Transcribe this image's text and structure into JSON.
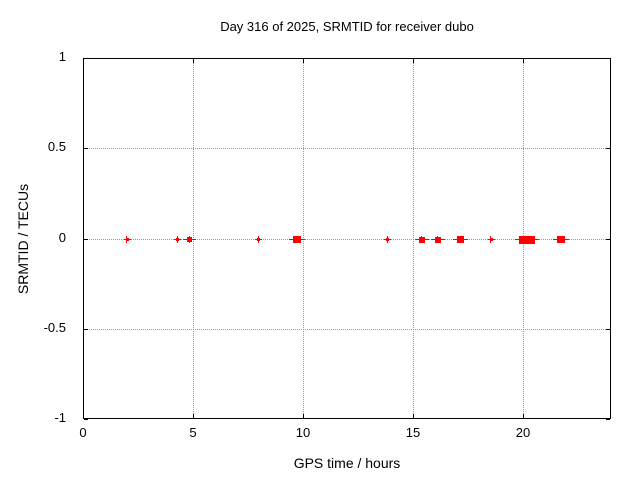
{
  "chart_data": {
    "type": "scatter",
    "title": "Day 316 of 2025, SRMTID for receiver dubo",
    "xlabel": "GPS time / hours",
    "ylabel": "SRMTID / TECUs",
    "xlim": [
      0,
      24
    ],
    "ylim": [
      -1,
      1
    ],
    "xticks": {
      "values": [
        0,
        5,
        10,
        15,
        20
      ],
      "labels": [
        "0",
        "5",
        "10",
        "15",
        "20"
      ]
    },
    "yticks": {
      "values": [
        1,
        0.5,
        0,
        -0.5,
        -1
      ],
      "labels": [
        "1",
        "0.5",
        "0",
        "-0.5",
        "-1"
      ]
    },
    "grid": true,
    "legend": "none",
    "marker": {
      "shape": "plus-cluster",
      "color": "#ff0000"
    },
    "series": [
      {
        "name": "SRMTID",
        "points": [
          {
            "x": 1.97,
            "y": 0,
            "w": 3,
            "h": 3
          },
          {
            "x": 4.25,
            "y": 0,
            "w": 3,
            "h": 3
          },
          {
            "x": 4.8,
            "y": 0,
            "w": 5,
            "h": 5
          },
          {
            "x": 7.95,
            "y": 0,
            "w": 3,
            "h": 3
          },
          {
            "x": 9.7,
            "y": 0,
            "w": 8,
            "h": 7
          },
          {
            "x": 13.8,
            "y": 0,
            "w": 3,
            "h": 3
          },
          {
            "x": 15.35,
            "y": 0,
            "w": 6,
            "h": 6
          },
          {
            "x": 16.1,
            "y": 0,
            "w": 6,
            "h": 6
          },
          {
            "x": 17.1,
            "y": 0,
            "w": 7,
            "h": 7
          },
          {
            "x": 18.5,
            "y": 0,
            "w": 3,
            "h": 3
          },
          {
            "x": 20.15,
            "y": 0,
            "w": 16,
            "h": 8
          },
          {
            "x": 21.7,
            "y": 0,
            "w": 8,
            "h": 7
          }
        ]
      }
    ]
  }
}
